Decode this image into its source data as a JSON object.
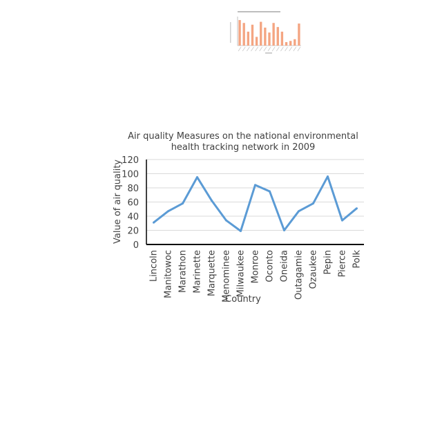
{
  "chart_data": [
    {
      "type": "line",
      "title": "Air quality Measures on the national environmental health tracking network in 2009",
      "xlabel": "Country",
      "ylabel": "Value of air quality",
      "categories": [
        "Lincoln",
        "Manitowoc",
        "Marathon",
        "Marinette",
        "Marquette",
        "Menominee",
        "Milwaukee",
        "Monroe",
        "Oconto",
        "Oneida",
        "Outagamie",
        "Ozaukee",
        "Pepin",
        "Pierce",
        "Polk"
      ],
      "values": [
        31,
        47,
        58,
        95,
        62,
        34,
        19,
        84,
        75,
        20,
        47,
        58,
        96,
        34,
        51
      ],
      "ylim": [
        0,
        120
      ],
      "yticks": [
        0,
        20,
        40,
        60,
        80,
        100,
        120
      ],
      "grid": true,
      "colors": {
        "line": "#5b9bd5",
        "grid": "#d9d9d9",
        "axis": "#000000",
        "text": "#404040"
      }
    },
    {
      "type": "bar",
      "values": [
        88,
        78,
        48,
        72,
        30,
        82,
        62,
        45,
        78,
        64,
        48,
        12,
        16,
        22,
        76
      ],
      "ylim": [
        0,
        100
      ],
      "grid": false,
      "colors": {
        "bar": "#f4a582",
        "axis": "#999999"
      }
    }
  ]
}
